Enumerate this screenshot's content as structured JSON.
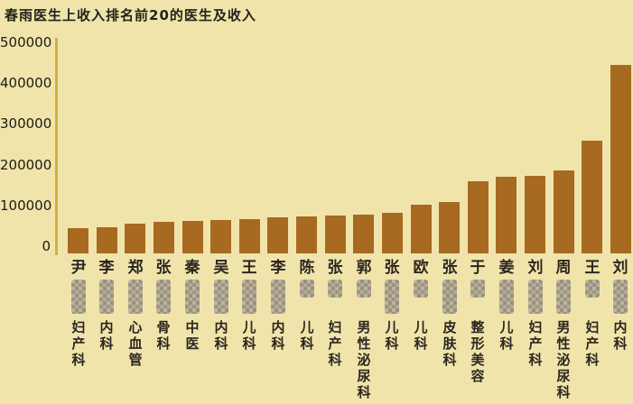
{
  "title": "春雨医生上收入排名前20的医生及收入",
  "colors": {
    "background": "#f1e4ab",
    "bar": "#a76a20",
    "axis_line": "#d2b13c",
    "text": "#2b2620",
    "censor_block": "#a09a8c"
  },
  "chart_data": {
    "type": "bar",
    "title": "春雨医生上收入排名前20的医生及收入",
    "xlabel": "",
    "ylabel": "",
    "ylim": [
      0,
      500000
    ],
    "grid": false,
    "legend": "none",
    "y_ticks": [
      500000,
      400000,
      300000,
      200000,
      100000,
      0
    ],
    "categories": [
      "尹",
      "李",
      "郑",
      "张",
      "秦",
      "吴",
      "王",
      "李",
      "陈",
      "张",
      "郭",
      "张",
      "欧",
      "张",
      "于",
      "姜",
      "刘",
      "周",
      "王",
      "刘"
    ],
    "departments": [
      "妇产科",
      "内科",
      "心血管",
      "骨科",
      "中医",
      "内科",
      "儿科",
      "内科",
      "儿科",
      "妇产科",
      "男性泌尿科",
      "儿科",
      "儿科",
      "皮肤科",
      "整形美容",
      "儿科",
      "妇产科",
      "男性泌尿科",
      "妇产科",
      "内科"
    ],
    "values": [
      63000,
      64000,
      72000,
      77000,
      79000,
      81000,
      83000,
      88000,
      90000,
      92000,
      95000,
      100000,
      120000,
      126000,
      176000,
      187000,
      191000,
      203000,
      277000,
      462000
    ],
    "censored_given_name_chars": [
      2,
      2,
      2,
      2,
      2,
      2,
      2,
      2,
      1,
      1,
      1,
      2,
      1,
      2,
      1,
      2,
      2,
      2,
      1,
      2
    ],
    "note_censored_names": "given names are pixelated/redacted in the source image"
  }
}
